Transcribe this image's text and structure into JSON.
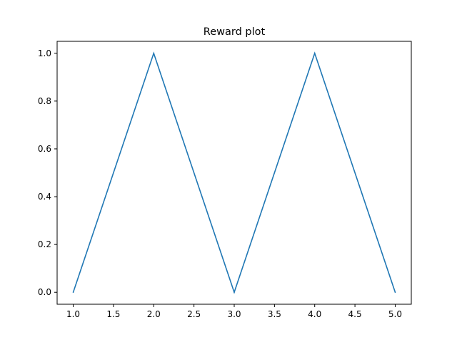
{
  "chart_data": {
    "type": "line",
    "title": "Reward plot",
    "xlabel": "",
    "ylabel": "",
    "x": [
      1.0,
      2.0,
      3.0,
      4.0,
      5.0
    ],
    "series": [
      {
        "values": [
          0.0,
          1.0,
          0.0,
          1.0,
          0.0
        ],
        "color": "#1f77b4"
      }
    ],
    "xlim": [
      0.8,
      5.2
    ],
    "ylim": [
      -0.05,
      1.05
    ],
    "xticks": [
      "1.0",
      "1.5",
      "2.0",
      "2.5",
      "3.0",
      "3.5",
      "4.0",
      "4.5",
      "5.0"
    ],
    "yticks": [
      "0.0",
      "0.2",
      "0.4",
      "0.6",
      "0.8",
      "1.0"
    ],
    "grid": false,
    "legend": false
  }
}
